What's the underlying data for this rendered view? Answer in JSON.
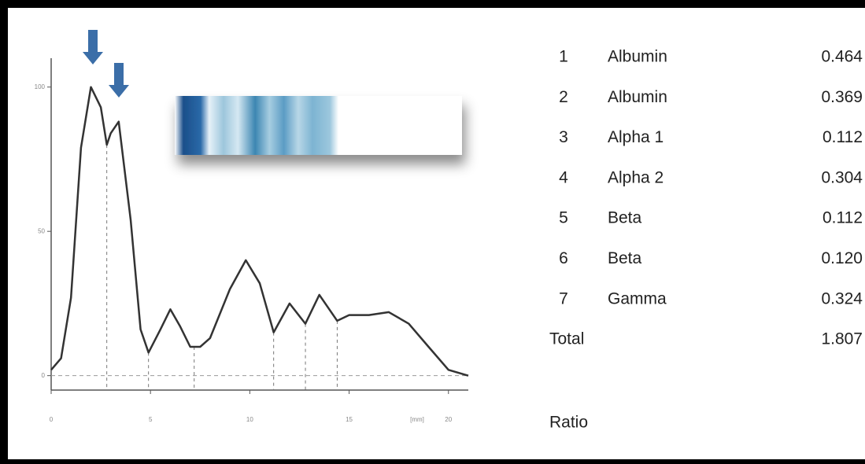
{
  "chart_data": {
    "type": "line",
    "x": [
      0,
      0.5,
      1,
      1.5,
      2,
      2.5,
      2.8,
      3,
      3.4,
      4,
      4.5,
      4.9,
      5.5,
      6,
      6.5,
      7,
      7.5,
      8,
      9,
      9.8,
      10.5,
      11.2,
      12,
      12.8,
      13.5,
      14.4,
      15,
      16,
      17,
      18,
      19,
      20,
      21
    ],
    "values": [
      2,
      6,
      27,
      79,
      100,
      93,
      80,
      84,
      88,
      54,
      16,
      8,
      16,
      23,
      17,
      10,
      10,
      13,
      30,
      40,
      32,
      15,
      25,
      18,
      28,
      19,
      21,
      21,
      22,
      18,
      10,
      2,
      0
    ],
    "color": "#333333",
    "dividers": [
      2.8,
      4.9,
      7.2,
      11.2,
      12.8,
      14.4
    ],
    "xlim": [
      0,
      21
    ],
    "ylim": [
      -5,
      110
    ],
    "xticks": [
      0,
      5,
      10,
      15,
      20
    ],
    "yticks": [
      0,
      50,
      100
    ],
    "x_label": "[mm]"
  },
  "table": {
    "rows": [
      [
        "1",
        "Albumin",
        "0.464"
      ],
      [
        "2",
        "Albumin",
        "0.369"
      ],
      [
        "3",
        "Alpha 1",
        "0.112"
      ],
      [
        "4",
        "Alpha 2",
        "0.304"
      ],
      [
        "5",
        "Beta",
        "0.112"
      ],
      [
        "6",
        "Beta",
        "0.120"
      ],
      [
        "7",
        "Gamma",
        "0.324"
      ]
    ],
    "total": [
      "Total",
      "1.807"
    ],
    "ratio": "Ratio"
  }
}
